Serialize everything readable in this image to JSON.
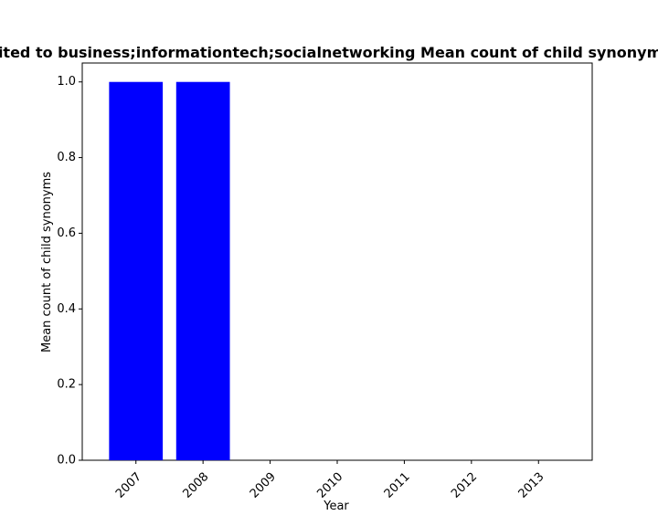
{
  "chart_data": {
    "type": "bar",
    "title": "Cited to business;informationtech;socialnetworking Mean count of child synonyms",
    "xlabel": "Year",
    "ylabel": "Mean count of child synonyms",
    "categories": [
      "2007",
      "2008",
      "2009",
      "2010",
      "2011",
      "2012",
      "2013"
    ],
    "values": [
      1.0,
      1.0,
      0,
      0,
      0,
      0,
      0
    ],
    "ylim": [
      0,
      1.05
    ],
    "yticks": [
      "0.0",
      "0.2",
      "0.4",
      "0.6",
      "0.8",
      "1.0"
    ],
    "bar_color": "#0000ff",
    "grid": false,
    "legend": "none"
  }
}
